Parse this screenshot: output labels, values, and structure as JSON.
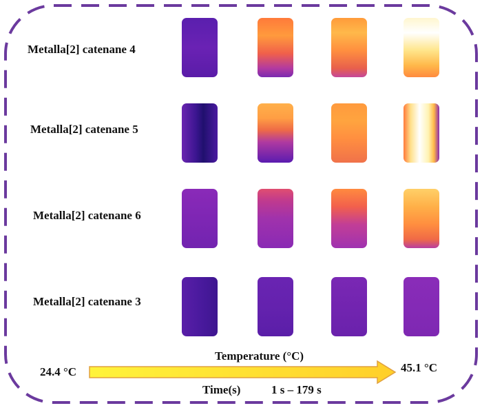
{
  "rows": [
    {
      "label": "Metalla[2] catenane 4",
      "tiles": [
        "linear-gradient(180deg,#5a1fae 0%,#6a22b4 50%,#5a1ca8 100%)",
        "linear-gradient(180deg,#ff7a3a 0%,#ff9a3d 30%,#f0604a 60%,#b23aa0 85%,#7a2ab0 100%)",
        "linear-gradient(180deg,#ff9b3a 0%,#ffb84a 25%,#ff8f3f 55%,#e8604c 85%,#c4489a 100%)",
        "linear-gradient(180deg,#fff6cf 0%,#ffffff 25%,#ffe58a 55%,#ffb84a 80%,#ff8a3f 100%)"
      ]
    },
    {
      "label": "Metalla[2] catenane 5",
      "tiles": [
        "linear-gradient(90deg,#6a25b0 0%,#3b1590 40%,#20106e 60%,#4a1aa0 100%)",
        "linear-gradient(180deg,#ffb04a 0%,#ff9e44 25%,#ee6a46 45%,#b03aa0 65%,#5a1cb0 100%)",
        "linear-gradient(180deg,#ff9a3d 0%,#ffa43f 30%,#ff8e40 60%,#f0724a 100%)",
        "linear-gradient(90deg,#ff7a3a 0%,#ffe08a 20%,#ffffff 45%,#fff2b0 70%,#ffb848 85%,#8a2cb0 100%)"
      ]
    },
    {
      "label": "Metalla[2] catenane 6",
      "tiles": [
        "linear-gradient(180deg,#8a2ab8 0%,#7e26b4 50%,#7224b0 100%)",
        "linear-gradient(180deg,#e04e70 0%,#c03a8e 20%,#a032ac 50%,#8a2ab4 100%)",
        "linear-gradient(180deg,#ff8a3f 0%,#f2604c 30%,#c23e96 60%,#a032b0 100%)",
        "linear-gradient(180deg,#ffd068 0%,#ffb048 30%,#ff8e3f 60%,#f06a46 85%,#b83ea0 100%)"
      ]
    },
    {
      "label": "Metalla[2] catenane 3",
      "tiles": [
        "linear-gradient(90deg,#5a1ea8 0%,#4a1a9e 50%,#3e1690 100%)",
        "linear-gradient(180deg,#6a24b2 0%,#6422ae 50%,#5a1ea8 100%)",
        "linear-gradient(180deg,#7a28b4 0%,#7224b0 50%,#6a22ac 100%)",
        "linear-gradient(180deg,#8a2cb8 0%,#842ab6 50%,#7e28b2 100%)"
      ]
    }
  ],
  "scale": {
    "min_label": "24.4 °C",
    "max_label": "45.1 °C",
    "title": "Temperature (°C)",
    "time_label": "Time(s)",
    "time_range": "1 s – 179 s"
  },
  "colors": {
    "border": "#6b3a9e",
    "arrow_fill_start": "#fff33a",
    "arrow_fill_end": "#ffcf2a",
    "arrow_stroke": "#e0a040"
  }
}
